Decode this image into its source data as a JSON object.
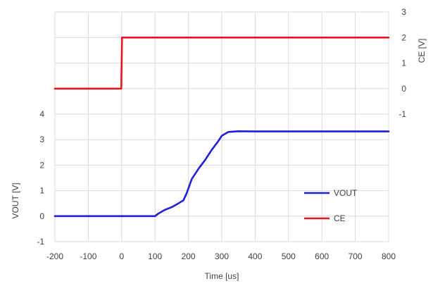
{
  "chart_data": {
    "type": "line",
    "title": "",
    "xlabel": "Time [us]",
    "ylabel_left": "VOUT [V]",
    "ylabel_right": "CE [V]",
    "xlim": [
      -200,
      800
    ],
    "x_ticks": [
      -200,
      -100,
      0,
      100,
      200,
      300,
      400,
      500,
      600,
      700,
      800
    ],
    "x_tick_labels": [
      "-200",
      "-100",
      "0",
      "100",
      "200",
      "300",
      "400",
      "500",
      "600",
      "700",
      "800"
    ],
    "ylim_left": [
      -1,
      4
    ],
    "y_left_ticks": [
      -1,
      0,
      1,
      2,
      3,
      4
    ],
    "y_left_tick_labels": [
      "-1",
      "0",
      "1",
      "2",
      "3",
      "4"
    ],
    "ylim_right": [
      -1,
      3
    ],
    "y_right_ticks": [
      -1,
      0,
      1,
      2,
      3
    ],
    "y_right_tick_labels": [
      "-1",
      "0",
      "1",
      "2",
      "3"
    ],
    "grid": true,
    "legend_position": "bottom-right",
    "series": [
      {
        "name": "VOUT",
        "axis": "left",
        "color": "#1f1fd6",
        "x": [
          -200,
          0,
          100,
          110,
          130,
          150,
          170,
          185,
          195,
          210,
          230,
          250,
          270,
          290,
          300,
          320,
          350,
          400,
          500,
          600,
          700,
          800
        ],
        "y": [
          0,
          0,
          0,
          0.1,
          0.25,
          0.35,
          0.5,
          0.62,
          0.9,
          1.45,
          1.85,
          2.2,
          2.6,
          2.95,
          3.15,
          3.3,
          3.33,
          3.32,
          3.32,
          3.32,
          3.32,
          3.32
        ]
      },
      {
        "name": "CE",
        "axis": "right",
        "color": "#e8141b",
        "x": [
          -200,
          -1,
          0,
          1,
          100,
          200,
          300,
          400,
          500,
          600,
          700,
          800
        ],
        "y": [
          0,
          0,
          1,
          2,
          2,
          2,
          2,
          2,
          2,
          2,
          2,
          2
        ]
      }
    ]
  }
}
